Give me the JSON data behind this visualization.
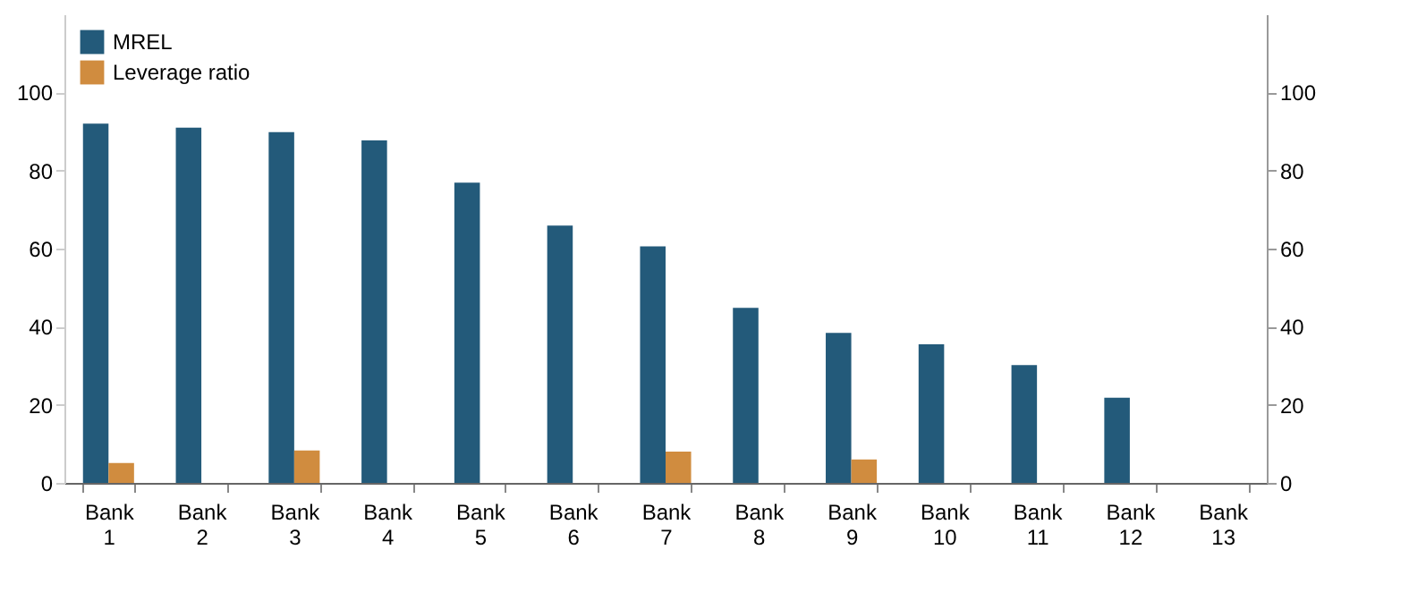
{
  "chart_data": {
    "type": "bar",
    "categories": [
      "Bank 1",
      "Bank 2",
      "Bank 3",
      "Bank 4",
      "Bank 5",
      "Bank 6",
      "Bank 7",
      "Bank 8",
      "Bank 9",
      "Bank 10",
      "Bank 11",
      "Bank 12",
      "Bank 13"
    ],
    "series": [
      {
        "name": "MREL",
        "color": "#235a7a",
        "values": [
          92,
          91,
          89.8,
          87.7,
          76.9,
          65.9,
          60.6,
          44.8,
          38.4,
          35.5,
          30.2,
          21.8,
          null
        ]
      },
      {
        "name": "Leverage ratio",
        "color": "#d08c3f",
        "values": [
          5.1,
          null,
          8.3,
          null,
          null,
          null,
          8.0,
          null,
          6.0,
          null,
          null,
          null,
          null
        ]
      }
    ],
    "ylim": [
      0,
      120
    ],
    "yticks": [
      0,
      20,
      40,
      60,
      80,
      100
    ],
    "y2lim": [
      0,
      120
    ],
    "y2ticks": [
      0,
      20,
      40,
      60,
      80,
      100
    ],
    "grid": false,
    "legend": "top left"
  }
}
